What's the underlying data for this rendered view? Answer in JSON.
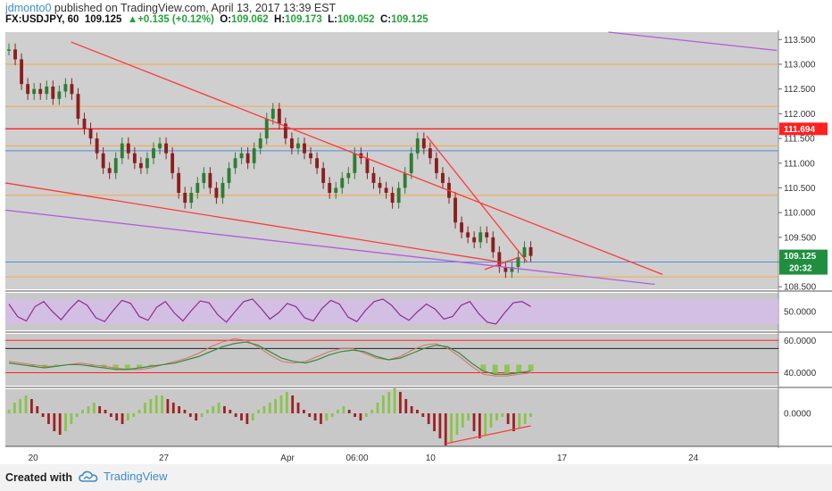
{
  "header": {
    "author": "jdmonto0",
    "published_text": "published on TradingView.com, April 13, 2017 13:39 EST",
    "symbol": "FX:USDJPY, 60",
    "last": "109.125",
    "change_arrow": "▲",
    "change": "+0.135 (+0.12%)",
    "o_label": "O:",
    "o_value": "109.062",
    "h_label": "H:",
    "h_value": "109.173",
    "l_label": "L:",
    "l_value": "109.052",
    "c_label": "C:",
    "c_value": "109.125"
  },
  "footer": {
    "created_with": "Created with",
    "brand": "TradingView",
    "brand_icon": "cloud-logo-icon"
  },
  "colors": {
    "chart_bg": "#cfcfcf",
    "panel_bg": "#c8c8c8",
    "up_candle": "#2f7d32",
    "down_candle": "#8a1f1f",
    "trend_red": "#ff3a3a",
    "trend_purple": "#b45be0",
    "level_orange": "#f5a64a",
    "level_blue": "#4a8ee0",
    "rsi_line": "#8e2c8e",
    "rsi_band": "#d6bdea",
    "hist_green": "#8bc34a",
    "hist_red": "#a02020",
    "last_badge": "#1f8f3f",
    "level_badge": "#ff2020"
  },
  "chart_data": {
    "type": "line",
    "symbol": "FX:USDJPY",
    "timeframe": "60",
    "x_ticks": [
      "20",
      "27",
      "Apr",
      "06:00",
      "10",
      "17",
      "24"
    ],
    "y_ticks": [
      "113.500",
      "113.000",
      "112.500",
      "112.000",
      "111.500",
      "111.000",
      "110.500",
      "110.000",
      "109.500",
      "109.000",
      "108.500"
    ],
    "ylim": [
      108.45,
      113.65
    ],
    "price_labels": {
      "level": "111.694",
      "last": "109.125",
      "countdown": "20:32"
    },
    "series": [
      {
        "values": [
          113.3,
          113.1,
          112.6,
          112.4,
          112.5,
          112.4,
          112.55,
          112.3,
          112.45,
          112.6,
          112.4,
          111.9,
          111.7,
          111.5,
          111.2,
          110.9,
          110.8,
          111.1,
          111.4,
          111.2,
          111.0,
          110.9,
          111.1,
          111.3,
          111.4,
          111.2,
          110.8,
          110.4,
          110.2,
          110.4,
          110.6,
          110.8,
          110.5,
          110.3,
          110.6,
          110.9,
          111.1,
          111.2,
          111.0,
          111.3,
          111.5,
          111.9,
          112.1,
          111.8,
          111.5,
          111.3,
          111.4,
          111.2,
          111.1,
          110.9,
          110.6,
          110.4,
          110.5,
          110.7,
          110.8,
          111.2,
          111.1,
          110.8,
          110.6,
          110.5,
          110.4,
          110.2,
          110.5,
          110.8,
          111.2,
          111.5,
          111.3,
          111.1,
          110.8,
          110.6,
          110.3,
          109.8,
          109.6,
          109.5,
          109.4,
          109.6,
          109.5,
          109.2,
          108.9,
          108.8,
          108.9,
          109.1,
          109.3,
          109.125
        ]
      }
    ],
    "levels": {
      "orange": [
        113.0,
        112.15,
        111.35,
        110.35,
        108.7
      ],
      "blue": [
        111.25,
        109.0
      ],
      "red": [
        111.694
      ]
    },
    "trendlines": {
      "red": [
        {
          "from": [
            0.085,
            113.45
          ],
          "to": [
            0.85,
            108.75
          ]
        },
        {
          "from": [
            0.0,
            110.6
          ],
          "to": [
            0.64,
            109.0
          ]
        },
        {
          "from": [
            0.545,
            111.55
          ],
          "to": [
            0.675,
            109.0
          ]
        },
        {
          "from": [
            0.62,
            108.85
          ],
          "to": [
            0.665,
            109.1
          ]
        }
      ],
      "purple": [
        {
          "from": [
            0.0,
            110.05
          ],
          "to": [
            0.84,
            108.55
          ]
        },
        {
          "from": [
            0.78,
            113.65
          ],
          "to": [
            0.998,
            113.28
          ]
        }
      ]
    },
    "rsi": {
      "y_ticks": [
        "50.0000"
      ],
      "band": [
        30,
        70
      ],
      "values": [
        62,
        42,
        35,
        58,
        66,
        50,
        37,
        54,
        68,
        60,
        40,
        34,
        52,
        68,
        63,
        42,
        36,
        57,
        66,
        48,
        35,
        52,
        67,
        64,
        45,
        33,
        50,
        66,
        70,
        55,
        38,
        48,
        63,
        58,
        40,
        35,
        55,
        68,
        62,
        41,
        34,
        52,
        66,
        70,
        60,
        44,
        36,
        50,
        62,
        54,
        38,
        42,
        60,
        66,
        47,
        33,
        30,
        48,
        64,
        66,
        58
      ]
    },
    "oscillator": {
      "y_ticks": [
        "60.0000",
        "40.0000"
      ],
      "levels": [
        60,
        55,
        40
      ],
      "line1": [
        46,
        45,
        44,
        43,
        44,
        45,
        45,
        44,
        43,
        42,
        42,
        43,
        44,
        45,
        46,
        48,
        50,
        53,
        56,
        58,
        59,
        57,
        53,
        49,
        47,
        46,
        48,
        51,
        53,
        54,
        53,
        50,
        48,
        49,
        52,
        55,
        57,
        56,
        52,
        46,
        41,
        39,
        39,
        40,
        41
      ],
      "line2": [
        47,
        46,
        45,
        44,
        44,
        45,
        46,
        45,
        44,
        43,
        42,
        42,
        43,
        45,
        47,
        49,
        52,
        56,
        59,
        61,
        60,
        56,
        51,
        47,
        46,
        47,
        50,
        53,
        55,
        55,
        52,
        49,
        48,
        50,
        54,
        57,
        58,
        55,
        50,
        44,
        39,
        38,
        38,
        39,
        40
      ]
    },
    "histogram": {
      "y_ticks": [
        "0.0000"
      ],
      "values": [
        1,
        3,
        4,
        5,
        4,
        2,
        -1,
        -3,
        -5,
        -6,
        -5,
        -3,
        -1,
        1,
        2,
        3,
        2,
        1,
        -1,
        -2,
        -3,
        -2,
        -1,
        1,
        3,
        4,
        5,
        5,
        4,
        3,
        2,
        1,
        -1,
        -2,
        -1,
        1,
        2,
        3,
        2,
        1,
        -1,
        -2,
        -3,
        -2,
        1,
        2,
        3,
        4,
        5,
        6,
        5,
        3,
        1,
        -1,
        -2,
        -3,
        -2,
        -1,
        1,
        2,
        1,
        -1,
        -2,
        -1,
        1,
        3,
        5,
        6,
        7,
        6,
        4,
        2,
        1,
        -1,
        -3,
        -5,
        -7,
        -9,
        -8,
        -6,
        -4,
        -2,
        -5,
        -7,
        -6,
        -4,
        -2,
        -1,
        -3,
        -5,
        -4,
        -3,
        -1
      ]
    }
  }
}
